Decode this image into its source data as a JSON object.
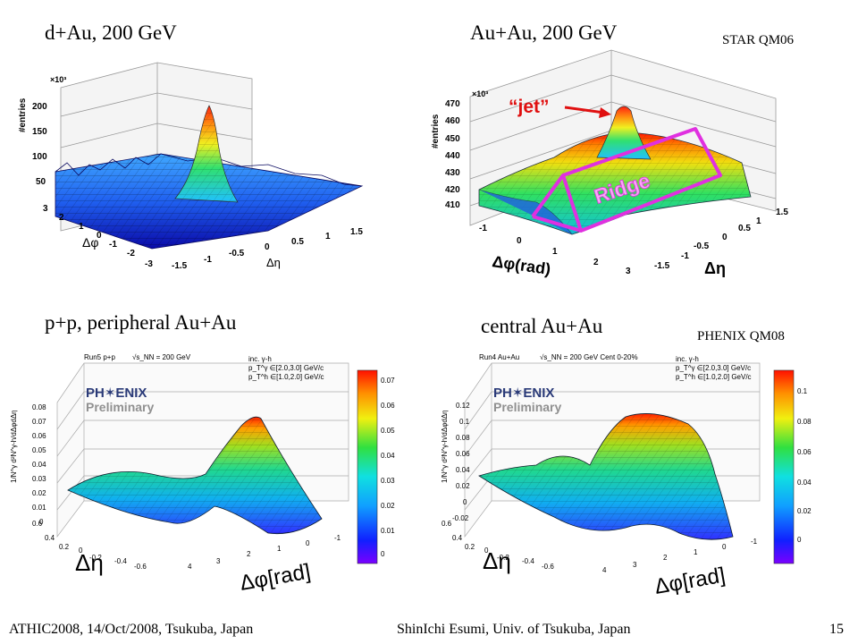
{
  "panels": {
    "star_dau": {
      "title": "d+Au, 200 GeV",
      "zlabel": "#entries",
      "zexp": "×10³",
      "zticks": [
        "200",
        "150",
        "100",
        "50"
      ],
      "phi_label": "Δφ",
      "eta_label": "Δη",
      "phi_ticks": [
        "3",
        "2",
        "1",
        "0",
        "-1",
        "-2",
        "-3"
      ],
      "eta_ticks": [
        "-1.5",
        "-1",
        "-0.5",
        "0",
        "0.5",
        "1",
        "1.5"
      ]
    },
    "star_auau": {
      "title": "Au+Au, 200 GeV",
      "source": "STAR QM06",
      "zlabel": "#entries",
      "zexp": "×10³",
      "zticks": [
        "470",
        "460",
        "450",
        "440",
        "430",
        "420",
        "410"
      ],
      "jet": "“jet”",
      "ridge": "Ridge",
      "phi_label": "Δφ(rad)",
      "eta_label": "Δη",
      "phi_ticks": [
        "-1",
        "0",
        "1",
        "2",
        "3"
      ],
      "eta_ticks": [
        "-1.5",
        "-1",
        "-0.5",
        "0",
        "0.5",
        "1",
        "1.5"
      ]
    },
    "phenix_pp": {
      "title": "p+p, peripheral Au+Au",
      "run": "Run5 p+p",
      "energy": "√s_NN = 200 GeV",
      "logo_top": "PH✶ENIX",
      "logo_bottom": "Preliminary",
      "inc": "inc. γ-h",
      "pt_trig": "p_T^γ ∈[2.0,3.0] GeV/c",
      "pt_assoc": "p_T^h ∈[1.0,2.0] GeV/c",
      "zlabel": "1/N^γ d²N^γ-h/dΔφdΔη",
      "zticks": [
        "0.08",
        "0.07",
        "0.06",
        "0.05",
        "0.04",
        "0.03",
        "0.02",
        "0.01",
        "0"
      ],
      "colorbar": [
        "0.07",
        "0.06",
        "0.05",
        "0.04",
        "0.03",
        "0.02",
        "0.01",
        "0"
      ],
      "eta_label": "Δη",
      "phi_label": "Δφ[rad]",
      "eta_ticks": [
        "0.6",
        "0.4",
        "0.2",
        "0",
        "-0.2",
        "-0.4",
        "-0.6"
      ],
      "phi_ticks": [
        "4",
        "3",
        "2",
        "1",
        "0",
        "-1"
      ]
    },
    "phenix_auau": {
      "title": "central Au+Au",
      "source": "PHENIX QM08",
      "run": "Run4 Au+Au",
      "energy": "√s_NN = 200 GeV  Cent 0-20%",
      "logo_top": "PH✶ENIX",
      "logo_bottom": "Preliminary",
      "inc": "inc. γ-h",
      "pt_trig": "p_T^γ ∈[2.0,3.0] GeV/c",
      "pt_assoc": "p_T^h ∈[1.0,2.0] GeV/c",
      "zlabel": "1/N^γ d²N^γ-h/dΔφdΔη",
      "zticks": [
        "0.12",
        "0.1",
        "0.08",
        "0.06",
        "0.04",
        "0.02",
        "0",
        "-0.02"
      ],
      "colorbar": [
        "0.1",
        "0.08",
        "0.06",
        "0.04",
        "0.02",
        "0"
      ],
      "eta_label": "Δη",
      "phi_label": "Δφ[rad]",
      "eta_ticks": [
        "0.6",
        "0.4",
        "0.2",
        "0",
        "-0.2",
        "-0.4",
        "-0.6"
      ],
      "phi_ticks": [
        "4",
        "3",
        "2",
        "1",
        "0",
        "-1"
      ]
    }
  },
  "footer": {
    "left": "ATHIC2008, 14/Oct/2008, Tsukuba, Japan",
    "center": "ShinIchi Esumi, Univ. of Tsukuba, Japan",
    "page": "15"
  },
  "colors": {
    "ridge_box": "#e030e0",
    "jet_arrow": "#e01010",
    "surface_low": "#1010c0",
    "surface_high": "#ff2000"
  }
}
